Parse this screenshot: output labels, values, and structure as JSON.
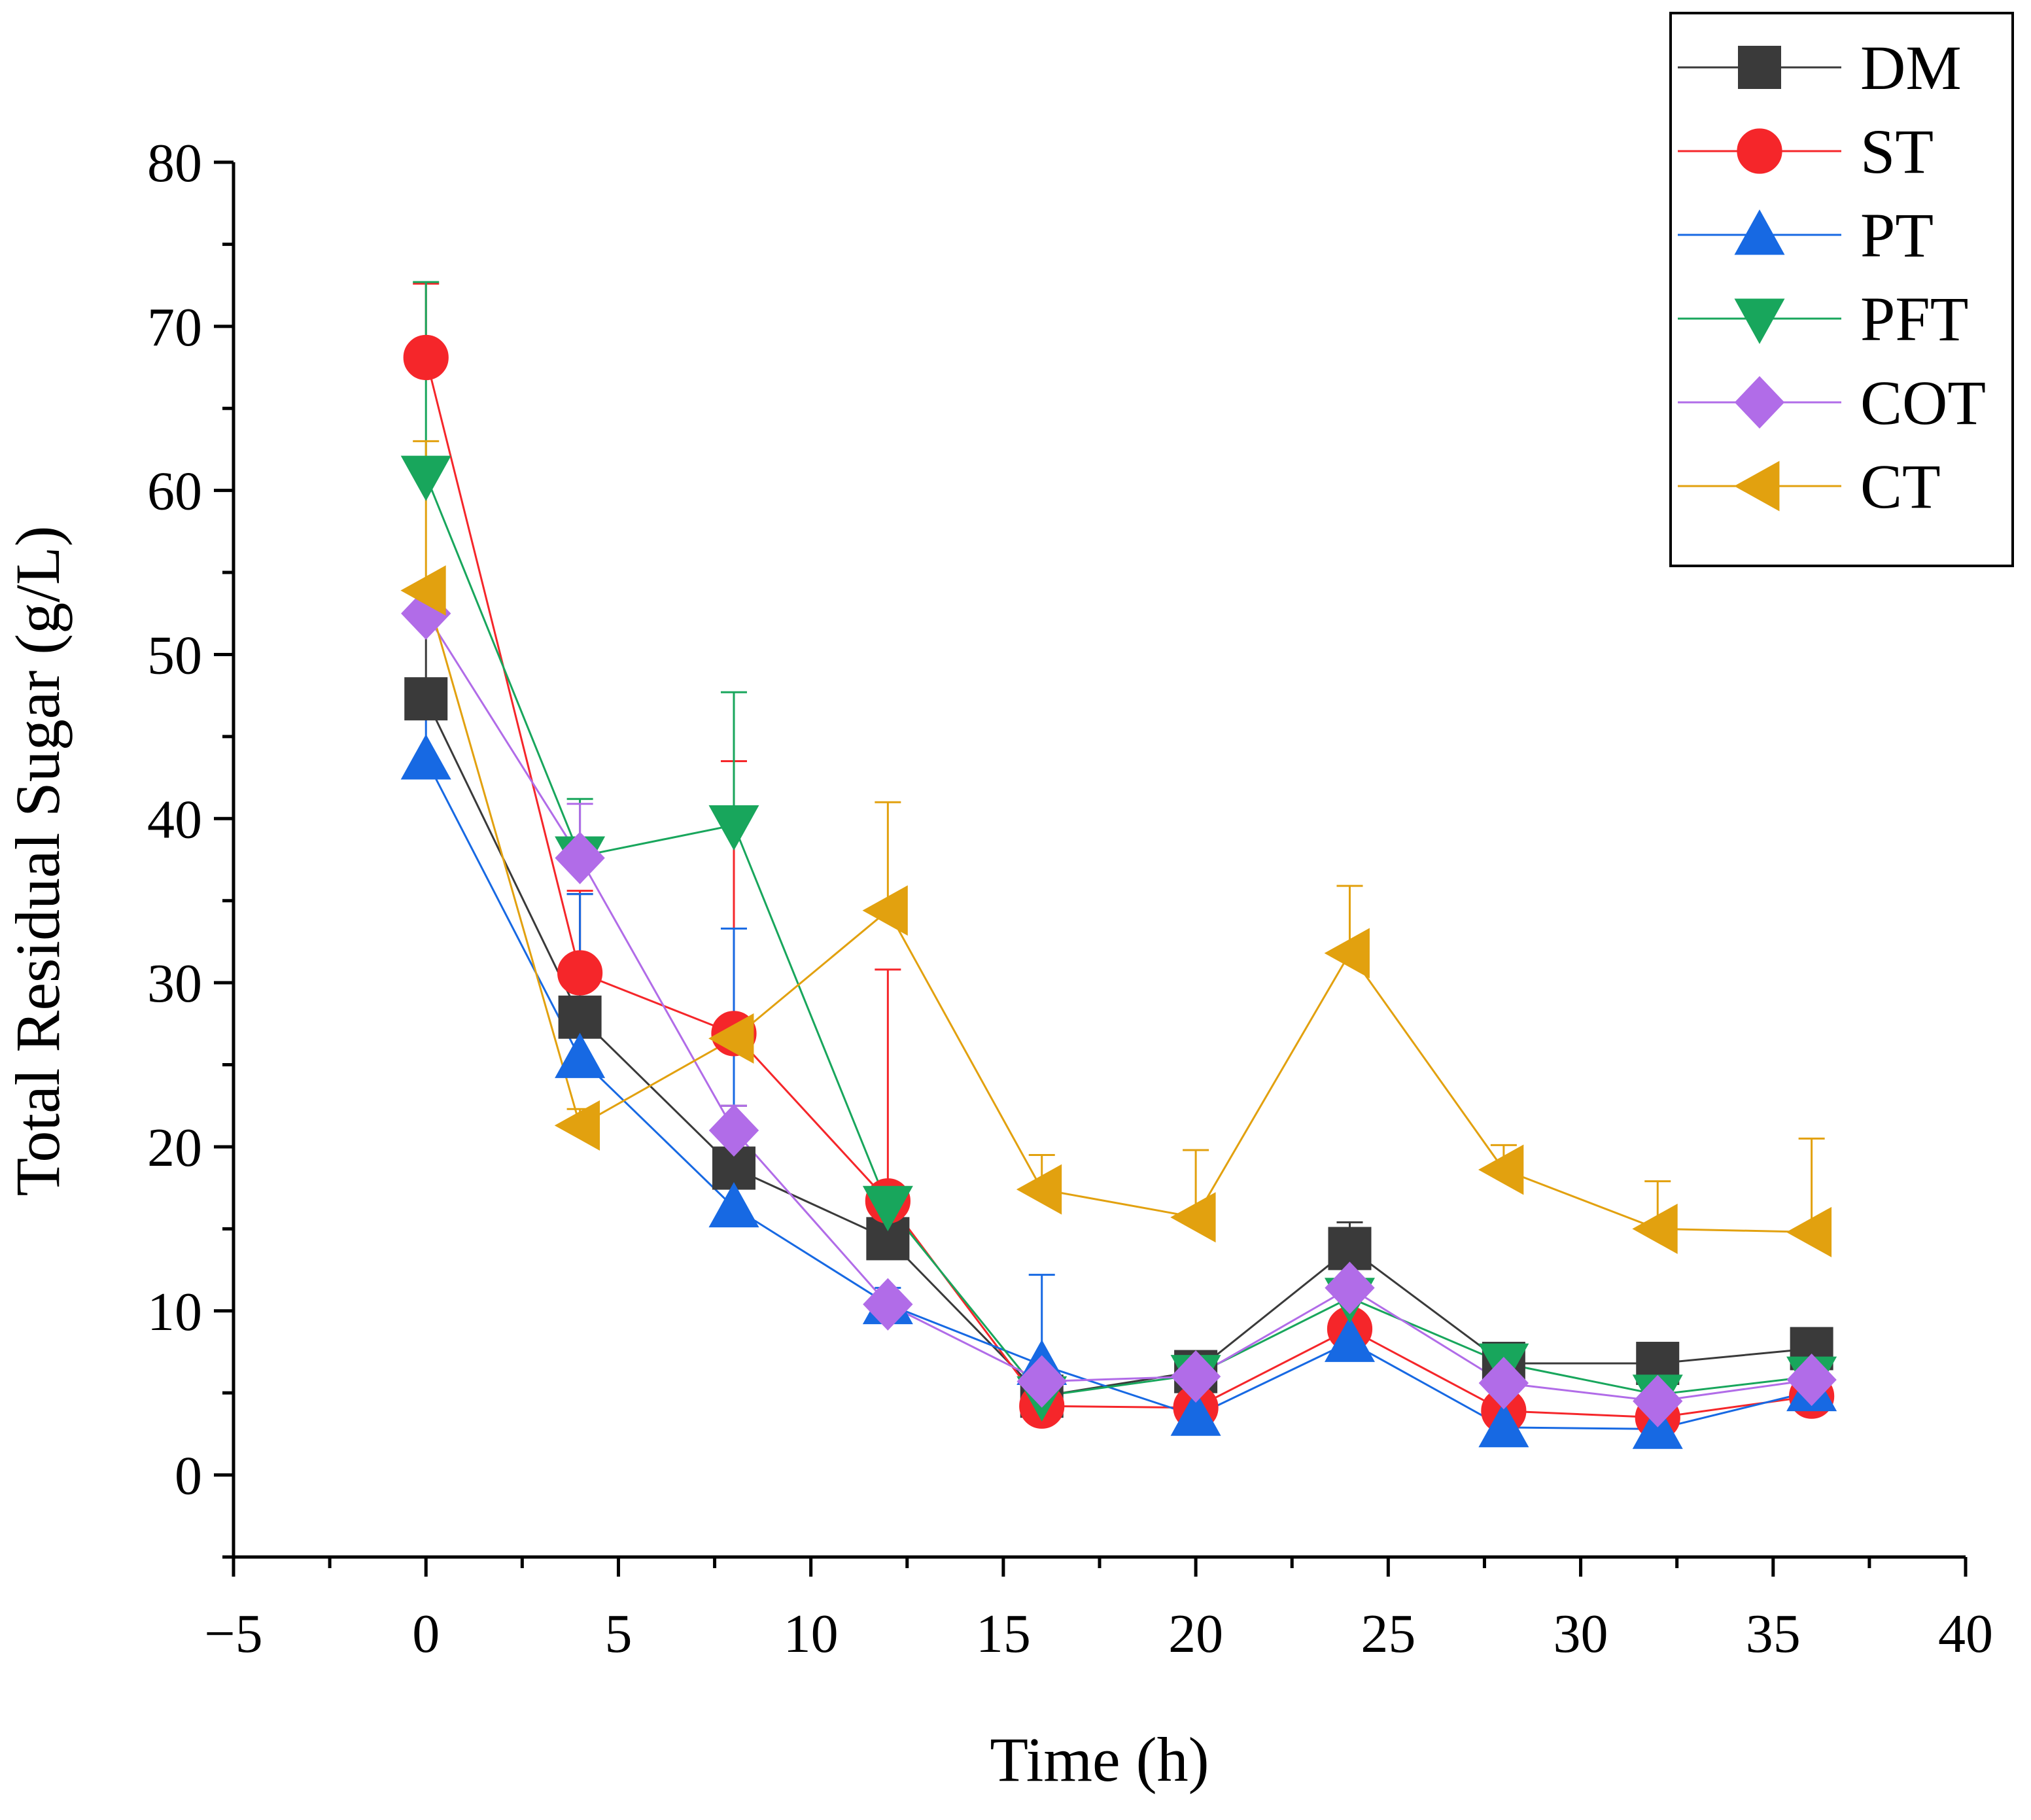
{
  "chart_data": {
    "type": "line",
    "xlabel": "Time (h)",
    "ylabel": "Total Residual Sugar (g/L)",
    "xlim": [
      -5,
      40
    ],
    "ylim": [
      -5,
      80
    ],
    "x_ticks": [
      -5,
      0,
      5,
      10,
      15,
      20,
      25,
      30,
      35,
      40
    ],
    "x_tick_labels": [
      "−5",
      "0",
      "5",
      "10",
      "15",
      "20",
      "25",
      "30",
      "35",
      "40"
    ],
    "y_ticks": [
      0,
      10,
      20,
      30,
      40,
      50,
      60,
      70,
      80
    ],
    "y_tick_labels": [
      "0",
      "10",
      "20",
      "30",
      "40",
      "50",
      "60",
      "70",
      "80"
    ],
    "legend_position": "top-right",
    "grid": false,
    "x": [
      0,
      4,
      8,
      12,
      16,
      20,
      24,
      28,
      32,
      36
    ],
    "series": [
      {
        "name": "DM",
        "marker": "square",
        "color": "#3a3a3a",
        "values": [
          47.3,
          27.9,
          18.7,
          14.4,
          4.8,
          6.3,
          13.8,
          6.8,
          6.8,
          7.7
        ],
        "errors": [
          6.4,
          7.5,
          3.8,
          1.8,
          0.8,
          1.0,
          1.6,
          0.6,
          0.5,
          0.9
        ]
      },
      {
        "name": "ST",
        "marker": "circle",
        "color": "#f5262a",
        "values": [
          68.1,
          30.6,
          26.9,
          16.7,
          4.2,
          4.1,
          8.9,
          3.9,
          3.5,
          4.8
        ],
        "errors": [
          4.5,
          5.0,
          16.6,
          14.1,
          0.5,
          1.0,
          1.0,
          0.6,
          0.6,
          0.7
        ]
      },
      {
        "name": "PT",
        "marker": "triangle-up",
        "color": "#1769e3",
        "values": [
          43.6,
          25.4,
          16.3,
          10.4,
          6.7,
          3.6,
          8.1,
          2.9,
          2.8,
          5.1
        ],
        "errors": [
          3.6,
          10.0,
          17.0,
          1.0,
          5.5,
          1.0,
          0.8,
          0.5,
          0.5,
          0.5
        ]
      },
      {
        "name": "PFT",
        "marker": "triangle-down",
        "color": "#18a65c",
        "values": [
          60.9,
          37.7,
          39.6,
          16.4,
          4.8,
          6.1,
          10.8,
          6.8,
          4.9,
          6.0
        ],
        "errors": [
          11.8,
          3.5,
          8.1,
          1.0,
          0.6,
          1.0,
          0.7,
          0.4,
          0.5,
          0.6
        ]
      },
      {
        "name": "COT",
        "marker": "diamond",
        "color": "#b16ce8",
        "values": [
          52.5,
          37.6,
          21.0,
          10.4,
          5.7,
          6.0,
          11.4,
          5.6,
          4.5,
          5.8
        ],
        "errors": [
          1.5,
          3.3,
          1.5,
          0.5,
          0.6,
          0.6,
          0.6,
          0.5,
          0.5,
          0.5
        ]
      },
      {
        "name": "CT",
        "marker": "triangle-left",
        "color": "#e2a10f",
        "values": [
          53.9,
          21.3,
          26.6,
          34.4,
          17.4,
          15.7,
          31.8,
          18.6,
          15.0,
          14.8
        ],
        "errors": [
          9.1,
          1.0,
          1.0,
          6.6,
          2.1,
          4.1,
          4.1,
          1.5,
          2.9,
          5.7
        ]
      }
    ]
  }
}
